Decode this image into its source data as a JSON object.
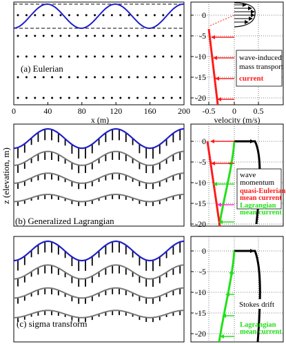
{
  "colors": {
    "wave": "#1f1fc8",
    "current": "#ff1a1a",
    "lagrangian": "#22e01a",
    "surface_gray": "#777777",
    "profile": "#000000",
    "pink": "#ff33cc"
  },
  "ylabel_shared": "z (elevation, m)",
  "panel_a": {
    "label": "(a) Eulerian",
    "xlabel": "x  (m)",
    "xticks": [
      "0",
      "40",
      "80",
      "120",
      "160",
      "200"
    ]
  },
  "panel_b": {
    "label": "(b) Generalized Lagrangian"
  },
  "panel_c": {
    "label": "(c) sigma transform"
  },
  "right_a": {
    "yticks": [
      "0",
      "-5",
      "-10",
      "-15",
      "-20"
    ],
    "xticks": [
      "-0.5",
      "0",
      "0.5"
    ],
    "xlabel": "velocity  (m/s)",
    "legend_line1": "wave-induced",
    "legend_line2": "mass transport",
    "legend_current": "current"
  },
  "right_b": {
    "yticks": [
      "0",
      "-5",
      "-10",
      "-15",
      "-20"
    ],
    "legend_wave1": "wave",
    "legend_wave2": "momentum",
    "legend_qe1": "quasi-Eulerian",
    "legend_qe2": "mean current",
    "legend_lag1": "Lagrangian",
    "legend_lag2": "mean current"
  },
  "right_c": {
    "yticks": [
      "0",
      "-5",
      "-10",
      "-15",
      "-20"
    ],
    "legend_stokes": "Stokes drift",
    "legend_lag1": "Lagrangian",
    "legend_lag2": "mean current"
  }
}
